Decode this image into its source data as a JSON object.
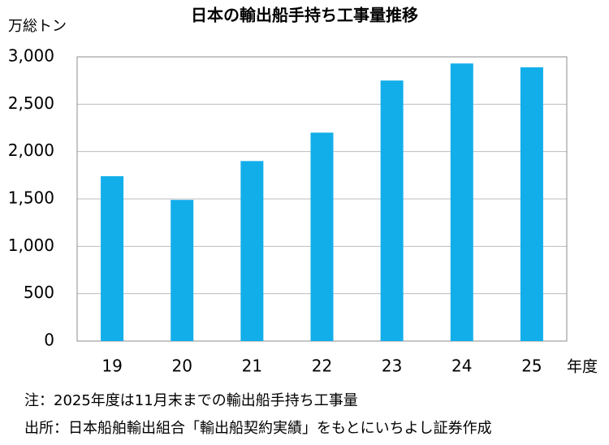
{
  "chart_data": {
    "type": "bar",
    "title": "日本の輸出船手持ち工事量推移",
    "y_label": "万総トン",
    "x_label": "年度",
    "categories": [
      "19",
      "20",
      "21",
      "22",
      "23",
      "24",
      "25"
    ],
    "values": [
      1740,
      1490,
      1900,
      2200,
      2750,
      2930,
      2890
    ],
    "color": "#12aeea",
    "ylim": [
      0,
      3000
    ],
    "yticks": [
      0,
      500,
      {
        "value": 1000,
        "label": "1,000"
      },
      {
        "value": 1500,
        "label": "1,500"
      },
      {
        "value": 2000,
        "label": "2,000"
      },
      {
        "value": 2500,
        "label": "2,500"
      },
      {
        "value": 3000,
        "label": "3,000"
      }
    ],
    "grid": true,
    "notes": [
      "注：2025年度は11月末までの輸出船手持ち工事量",
      "出所：日本船舶輸出組合「輸出船契約実績」をもとにいちよし証券作成"
    ]
  }
}
